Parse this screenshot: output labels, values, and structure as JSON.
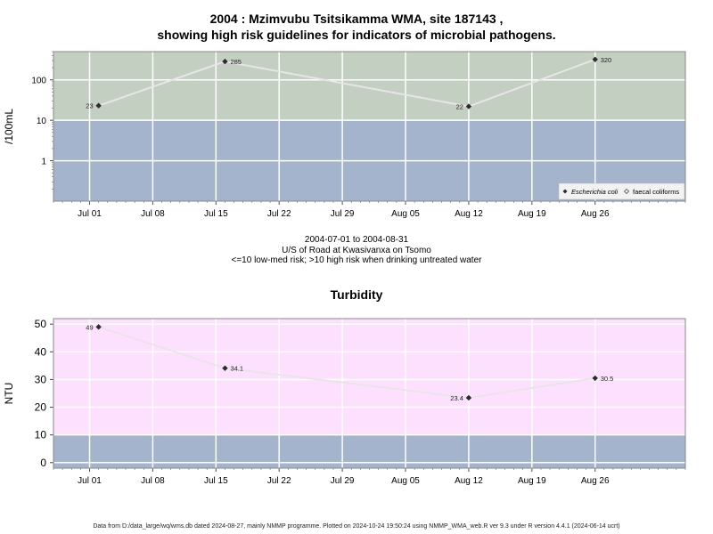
{
  "titles": {
    "main_line1": "2004 : Mzimvubu Tsitsikamma WMA, site 187143 ,",
    "main_line2": "showing high risk guidelines for indicators of microbial pathogens."
  },
  "caption": {
    "date_range": "2004-07-01 to 2004-08-31",
    "site": "U/S of Road at Kwasivanxa on Tsomo",
    "risk_note": "<=10 low-med risk; >10 high risk when drinking untreated water"
  },
  "footer": "Data from D:/data_large/wq/wms.db dated 2024-08-27, mainly NMMP programme. Plotted on 2024-10-24 19:50:24 using NMMP_WMA_web.R ver 9.3 under R version 4.4.1 (2024-06-14 ucrt)",
  "colors": {
    "high_risk_band": "#c3cfc1",
    "low_risk_band": "#a3b4cc",
    "turbidity_high_band": "#fde0fd",
    "line": "#e6e6e6",
    "point": "#2b2b2b",
    "grid": "#ffffff"
  },
  "chart_data": [
    {
      "type": "line",
      "title": "",
      "ylabel": "/100mL",
      "xlabel": "",
      "y_scale": "log",
      "ylim": [
        0.1,
        500
      ],
      "xlim": [
        "2004-06-27",
        "2004-09-05"
      ],
      "threshold": 10,
      "y_ticks": [
        1,
        10,
        100
      ],
      "y_tick_labels": [
        "1",
        "10",
        "100"
      ],
      "x_ticks": [
        "2004-07-01",
        "2004-07-08",
        "2004-07-15",
        "2004-07-22",
        "2004-07-29",
        "2004-08-05",
        "2004-08-12",
        "2004-08-19",
        "2004-08-26"
      ],
      "x_tick_labels": [
        "Jul 01",
        "Jul 08",
        "Jul 15",
        "Jul 22",
        "Jul 29",
        "Aug 05",
        "Aug 12",
        "Aug 19",
        "Aug 26"
      ],
      "grid": true,
      "legend_position": "bottom-right",
      "legend": [
        "Escherichia coli",
        "faecal coliforms"
      ],
      "series": [
        {
          "name": "Escherichia coli",
          "x": [
            "2004-07-02",
            "2004-07-16",
            "2004-08-12",
            "2004-08-26"
          ],
          "values": [
            23,
            285,
            22,
            320
          ],
          "labels": [
            "23",
            "285",
            "22",
            "320"
          ]
        }
      ]
    },
    {
      "type": "line",
      "title": "Turbidity",
      "ylabel": "NTU",
      "xlabel": "",
      "y_scale": "linear",
      "ylim": [
        -2,
        52
      ],
      "xlim": [
        "2004-06-27",
        "2004-09-05"
      ],
      "threshold": 10,
      "y_ticks": [
        0,
        10,
        20,
        30,
        40,
        50
      ],
      "y_tick_labels": [
        "0",
        "10",
        "20",
        "30",
        "40",
        "50"
      ],
      "x_ticks": [
        "2004-07-01",
        "2004-07-08",
        "2004-07-15",
        "2004-07-22",
        "2004-07-29",
        "2004-08-05",
        "2004-08-12",
        "2004-08-19",
        "2004-08-26"
      ],
      "x_tick_labels": [
        "Jul 01",
        "Jul 08",
        "Jul 15",
        "Jul 22",
        "Jul 29",
        "Aug 05",
        "Aug 12",
        "Aug 19",
        "Aug 26"
      ],
      "grid": true,
      "series": [
        {
          "name": "",
          "x": [
            "2004-07-02",
            "2004-07-16",
            "2004-08-12",
            "2004-08-26"
          ],
          "values": [
            49,
            34.1,
            23.4,
            30.5
          ],
          "labels": [
            "49",
            "34.1",
            "23.4",
            "30.5"
          ]
        }
      ]
    }
  ]
}
